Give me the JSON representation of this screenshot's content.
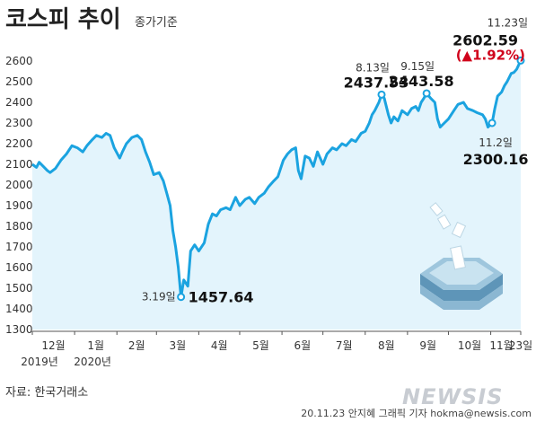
{
  "title": "코스피 추이",
  "subtitle": "종가기준",
  "source": "자료: 한국거래소",
  "credit": "20.11.23 안지혜 그래픽 기자 hokma@newsis.com",
  "watermark": "NEWSIS",
  "colors": {
    "line": "#1ba3e0",
    "fill": "#e3f4fc",
    "tick": "#333333",
    "negative": "#d0021b"
  },
  "chart_data": {
    "type": "area",
    "ylim": [
      1300,
      2700
    ],
    "yticks": [
      1300,
      1400,
      1500,
      1600,
      1700,
      1800,
      1900,
      2000,
      2100,
      2200,
      2300,
      2400,
      2500,
      2600
    ],
    "xlim": [
      "2019-12-01",
      "2020-11-23"
    ],
    "xticks": [
      {
        "label": "12월",
        "date": "2019-12-01"
      },
      {
        "label": "1월",
        "date": "2020-01-01"
      },
      {
        "label": "2월",
        "date": "2020-02-01"
      },
      {
        "label": "3월",
        "date": "2020-03-01"
      },
      {
        "label": "4월",
        "date": "2020-04-01"
      },
      {
        "label": "5월",
        "date": "2020-05-01"
      },
      {
        "label": "6월",
        "date": "2020-06-01"
      },
      {
        "label": "7월",
        "date": "2020-07-01"
      },
      {
        "label": "8월",
        "date": "2020-08-01"
      },
      {
        "label": "9월",
        "date": "2020-09-01"
      },
      {
        "label": "10월",
        "date": "2020-10-01"
      },
      {
        "label": "11월",
        "date": "2020-11-01"
      },
      {
        "label": "23일",
        "date": "2020-11-23"
      }
    ],
    "year_labels": [
      {
        "label": "2019년",
        "date": "2019-12-01"
      },
      {
        "label": "2020년",
        "date": "2020-01-01"
      }
    ],
    "series": [
      {
        "points": [
          [
            "2019-12-01",
            2100
          ],
          [
            "2019-12-04",
            2085
          ],
          [
            "2019-12-06",
            2110
          ],
          [
            "2019-12-09",
            2090
          ],
          [
            "2019-12-12",
            2070
          ],
          [
            "2019-12-14",
            2060
          ],
          [
            "2019-12-18",
            2080
          ],
          [
            "2019-12-22",
            2120
          ],
          [
            "2019-12-26",
            2150
          ],
          [
            "2019-12-30",
            2190
          ],
          [
            "2020-01-03",
            2180
          ],
          [
            "2020-01-07",
            2160
          ],
          [
            "2020-01-10",
            2190
          ],
          [
            "2020-01-14",
            2220
          ],
          [
            "2020-01-17",
            2240
          ],
          [
            "2020-01-21",
            2230
          ],
          [
            "2020-01-24",
            2250
          ],
          [
            "2020-01-27",
            2240
          ],
          [
            "2020-01-30",
            2180
          ],
          [
            "2020-02-03",
            2130
          ],
          [
            "2020-02-05",
            2160
          ],
          [
            "2020-02-08",
            2200
          ],
          [
            "2020-02-12",
            2230
          ],
          [
            "2020-02-16",
            2240
          ],
          [
            "2020-02-19",
            2220
          ],
          [
            "2020-02-22",
            2160
          ],
          [
            "2020-02-25",
            2110
          ],
          [
            "2020-02-28",
            2050
          ],
          [
            "2020-03-03",
            2060
          ],
          [
            "2020-03-06",
            2020
          ],
          [
            "2020-03-09",
            1950
          ],
          [
            "2020-03-11",
            1900
          ],
          [
            "2020-03-13",
            1780
          ],
          [
            "2020-03-15",
            1700
          ],
          [
            "2020-03-17",
            1600
          ],
          [
            "2020-03-19",
            1457.64
          ],
          [
            "2020-03-21",
            1540
          ],
          [
            "2020-03-24",
            1510
          ],
          [
            "2020-03-26",
            1680
          ],
          [
            "2020-03-29",
            1710
          ],
          [
            "2020-04-01",
            1680
          ],
          [
            "2020-04-05",
            1720
          ],
          [
            "2020-04-08",
            1810
          ],
          [
            "2020-04-11",
            1860
          ],
          [
            "2020-04-14",
            1850
          ],
          [
            "2020-04-17",
            1880
          ],
          [
            "2020-04-21",
            1890
          ],
          [
            "2020-04-24",
            1880
          ],
          [
            "2020-04-28",
            1940
          ],
          [
            "2020-05-01",
            1900
          ],
          [
            "2020-05-05",
            1930
          ],
          [
            "2020-05-08",
            1940
          ],
          [
            "2020-05-12",
            1910
          ],
          [
            "2020-05-15",
            1940
          ],
          [
            "2020-05-19",
            1960
          ],
          [
            "2020-05-22",
            1990
          ],
          [
            "2020-05-26",
            2020
          ],
          [
            "2020-05-29",
            2040
          ],
          [
            "2020-06-02",
            2120
          ],
          [
            "2020-06-05",
            2150
          ],
          [
            "2020-06-08",
            2170
          ],
          [
            "2020-06-11",
            2180
          ],
          [
            "2020-06-13",
            2070
          ],
          [
            "2020-06-15",
            2030
          ],
          [
            "2020-06-18",
            2140
          ],
          [
            "2020-06-21",
            2130
          ],
          [
            "2020-06-24",
            2090
          ],
          [
            "2020-06-27",
            2160
          ],
          [
            "2020-07-01",
            2100
          ],
          [
            "2020-07-04",
            2150
          ],
          [
            "2020-07-08",
            2180
          ],
          [
            "2020-07-11",
            2170
          ],
          [
            "2020-07-15",
            2200
          ],
          [
            "2020-07-18",
            2190
          ],
          [
            "2020-07-22",
            2220
          ],
          [
            "2020-07-25",
            2210
          ],
          [
            "2020-07-29",
            2250
          ],
          [
            "2020-08-01",
            2260
          ],
          [
            "2020-08-04",
            2300
          ],
          [
            "2020-08-06",
            2340
          ],
          [
            "2020-08-08",
            2360
          ],
          [
            "2020-08-11",
            2400
          ],
          [
            "2020-08-13",
            2437.53
          ],
          [
            "2020-08-15",
            2420
          ],
          [
            "2020-08-18",
            2340
          ],
          [
            "2020-08-20",
            2300
          ],
          [
            "2020-08-22",
            2330
          ],
          [
            "2020-08-25",
            2310
          ],
          [
            "2020-08-28",
            2360
          ],
          [
            "2020-09-01",
            2340
          ],
          [
            "2020-09-04",
            2370
          ],
          [
            "2020-09-07",
            2380
          ],
          [
            "2020-09-09",
            2360
          ],
          [
            "2020-09-11",
            2400
          ],
          [
            "2020-09-13",
            2420
          ],
          [
            "2020-09-15",
            2443.58
          ],
          [
            "2020-09-18",
            2420
          ],
          [
            "2020-09-21",
            2400
          ],
          [
            "2020-09-23",
            2320
          ],
          [
            "2020-09-25",
            2280
          ],
          [
            "2020-09-28",
            2300
          ],
          [
            "2020-10-01",
            2320
          ],
          [
            "2020-10-05",
            2360
          ],
          [
            "2020-10-08",
            2390
          ],
          [
            "2020-10-12",
            2400
          ],
          [
            "2020-10-15",
            2370
          ],
          [
            "2020-10-19",
            2360
          ],
          [
            "2020-10-22",
            2350
          ],
          [
            "2020-10-26",
            2340
          ],
          [
            "2020-10-28",
            2320
          ],
          [
            "2020-10-30",
            2280
          ],
          [
            "2020-11-02",
            2300.16
          ],
          [
            "2020-11-04",
            2370
          ],
          [
            "2020-11-06",
            2430
          ],
          [
            "2020-11-09",
            2450
          ],
          [
            "2020-11-11",
            2480
          ],
          [
            "2020-11-13",
            2500
          ],
          [
            "2020-11-16",
            2540
          ],
          [
            "2020-11-18",
            2545
          ],
          [
            "2020-11-20",
            2560
          ],
          [
            "2020-11-23",
            2602.59
          ]
        ]
      }
    ],
    "annotations": [
      {
        "date_label": "3.19일",
        "value_label": "1457.64",
        "date": "2020-03-19",
        "value": 1457.64,
        "anchor": "right"
      },
      {
        "date_label": "8.13일",
        "value_label": "2437.53",
        "date": "2020-08-13",
        "value": 2437.53,
        "anchor": "above"
      },
      {
        "date_label": "9.15일",
        "value_label": "2443.58",
        "date": "2020-09-15",
        "value": 2443.58,
        "anchor": "above"
      },
      {
        "date_label": "11.2일",
        "value_label": "2300.16",
        "date": "2020-11-02",
        "value": 2300.16,
        "anchor": "below"
      },
      {
        "date_label": "11.23일",
        "value_label": "2602.59",
        "change_label": "(▲1.92%)",
        "date": "2020-11-23",
        "value": 2602.59,
        "anchor": "above-left"
      }
    ]
  }
}
